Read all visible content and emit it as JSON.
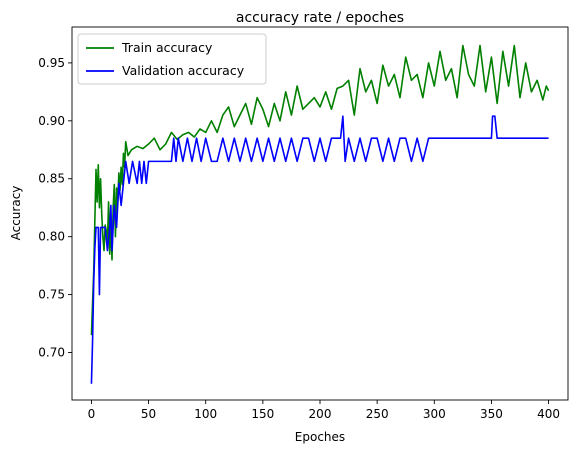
{
  "chart_data": {
    "type": "line",
    "title": "accuracy rate / epoches",
    "xlabel": "Epoches",
    "ylabel": "Accuracy",
    "xlim": [
      -17,
      417
    ],
    "ylim": [
      0.659,
      0.981
    ],
    "xticks": [
      0,
      50,
      100,
      150,
      200,
      250,
      300,
      350,
      400
    ],
    "yticks": [
      0.7,
      0.75,
      0.8,
      0.85,
      0.9,
      0.95
    ],
    "ytick_labels": [
      "0.70",
      "0.75",
      "0.80",
      "0.85",
      "0.90",
      "0.95"
    ],
    "grid": false,
    "legend_position": "upper left",
    "series": [
      {
        "name": "Train accuracy",
        "color": "#008000",
        "x": [
          0,
          2,
          4,
          5,
          6,
          7,
          8,
          9,
          10,
          11,
          12,
          13,
          14,
          15,
          16,
          17,
          18,
          19,
          20,
          21,
          22,
          23,
          24,
          25,
          26,
          27,
          28,
          29,
          30,
          32,
          35,
          40,
          45,
          50,
          55,
          60,
          65,
          70,
          75,
          80,
          85,
          90,
          95,
          100,
          105,
          110,
          115,
          120,
          125,
          130,
          135,
          140,
          145,
          150,
          155,
          160,
          165,
          170,
          175,
          180,
          185,
          190,
          195,
          200,
          205,
          210,
          215,
          220,
          225,
          230,
          235,
          240,
          245,
          250,
          255,
          260,
          265,
          270,
          275,
          280,
          285,
          290,
          295,
          300,
          305,
          310,
          315,
          320,
          325,
          330,
          335,
          340,
          345,
          350,
          355,
          360,
          365,
          370,
          375,
          380,
          385,
          390,
          395,
          398,
          400
        ],
        "values": [
          0.715,
          0.77,
          0.858,
          0.83,
          0.862,
          0.825,
          0.85,
          0.82,
          0.8,
          0.788,
          0.81,
          0.805,
          0.795,
          0.83,
          0.785,
          0.81,
          0.78,
          0.825,
          0.845,
          0.8,
          0.842,
          0.83,
          0.855,
          0.84,
          0.86,
          0.845,
          0.872,
          0.86,
          0.882,
          0.87,
          0.875,
          0.878,
          0.876,
          0.88,
          0.885,
          0.875,
          0.88,
          0.89,
          0.884,
          0.888,
          0.89,
          0.886,
          0.893,
          0.89,
          0.9,
          0.89,
          0.905,
          0.912,
          0.895,
          0.905,
          0.915,
          0.897,
          0.92,
          0.91,
          0.895,
          0.915,
          0.9,
          0.925,
          0.905,
          0.93,
          0.91,
          0.915,
          0.92,
          0.912,
          0.925,
          0.91,
          0.928,
          0.93,
          0.935,
          0.905,
          0.945,
          0.925,
          0.935,
          0.915,
          0.948,
          0.93,
          0.94,
          0.92,
          0.955,
          0.935,
          0.94,
          0.92,
          0.95,
          0.93,
          0.96,
          0.935,
          0.945,
          0.92,
          0.965,
          0.94,
          0.93,
          0.965,
          0.925,
          0.955,
          0.915,
          0.96,
          0.93,
          0.965,
          0.92,
          0.95,
          0.925,
          0.935,
          0.918,
          0.93,
          0.926
        ]
      },
      {
        "name": "Validation accuracy",
        "color": "#0000ff",
        "x": [
          0,
          1,
          2,
          3,
          4,
          5,
          6,
          7,
          8,
          9,
          10,
          11,
          12,
          14,
          16,
          17,
          18,
          19,
          20,
          22,
          24,
          26,
          28,
          30,
          33,
          36,
          40,
          42,
          44,
          46,
          48,
          50,
          52,
          55,
          60,
          65,
          70,
          72,
          74,
          76,
          80,
          84,
          88,
          92,
          96,
          100,
          105,
          110,
          115,
          120,
          125,
          130,
          135,
          140,
          145,
          150,
          155,
          160,
          165,
          170,
          175,
          180,
          185,
          190,
          195,
          200,
          205,
          210,
          215,
          218,
          220,
          222,
          225,
          230,
          235,
          240,
          245,
          250,
          255,
          260,
          265,
          270,
          275,
          280,
          285,
          290,
          295,
          300,
          310,
          320,
          330,
          340,
          350,
          351,
          353,
          355,
          360,
          380,
          400
        ],
        "values": [
          0.673,
          0.71,
          0.76,
          0.79,
          0.808,
          0.808,
          0.808,
          0.75,
          0.808,
          0.808,
          0.808,
          0.808,
          0.808,
          0.788,
          0.808,
          0.827,
          0.788,
          0.808,
          0.827,
          0.808,
          0.846,
          0.827,
          0.846,
          0.865,
          0.846,
          0.865,
          0.846,
          0.865,
          0.846,
          0.865,
          0.846,
          0.865,
          0.865,
          0.865,
          0.865,
          0.865,
          0.865,
          0.885,
          0.865,
          0.885,
          0.865,
          0.885,
          0.865,
          0.885,
          0.865,
          0.885,
          0.865,
          0.865,
          0.885,
          0.865,
          0.885,
          0.865,
          0.885,
          0.865,
          0.885,
          0.865,
          0.885,
          0.865,
          0.885,
          0.865,
          0.885,
          0.865,
          0.885,
          0.885,
          0.865,
          0.885,
          0.865,
          0.885,
          0.885,
          0.885,
          0.904,
          0.865,
          0.885,
          0.865,
          0.885,
          0.865,
          0.885,
          0.885,
          0.865,
          0.885,
          0.865,
          0.885,
          0.885,
          0.865,
          0.885,
          0.865,
          0.885,
          0.885,
          0.885,
          0.885,
          0.885,
          0.885,
          0.885,
          0.904,
          0.904,
          0.885,
          0.885,
          0.885,
          0.885
        ]
      }
    ]
  }
}
